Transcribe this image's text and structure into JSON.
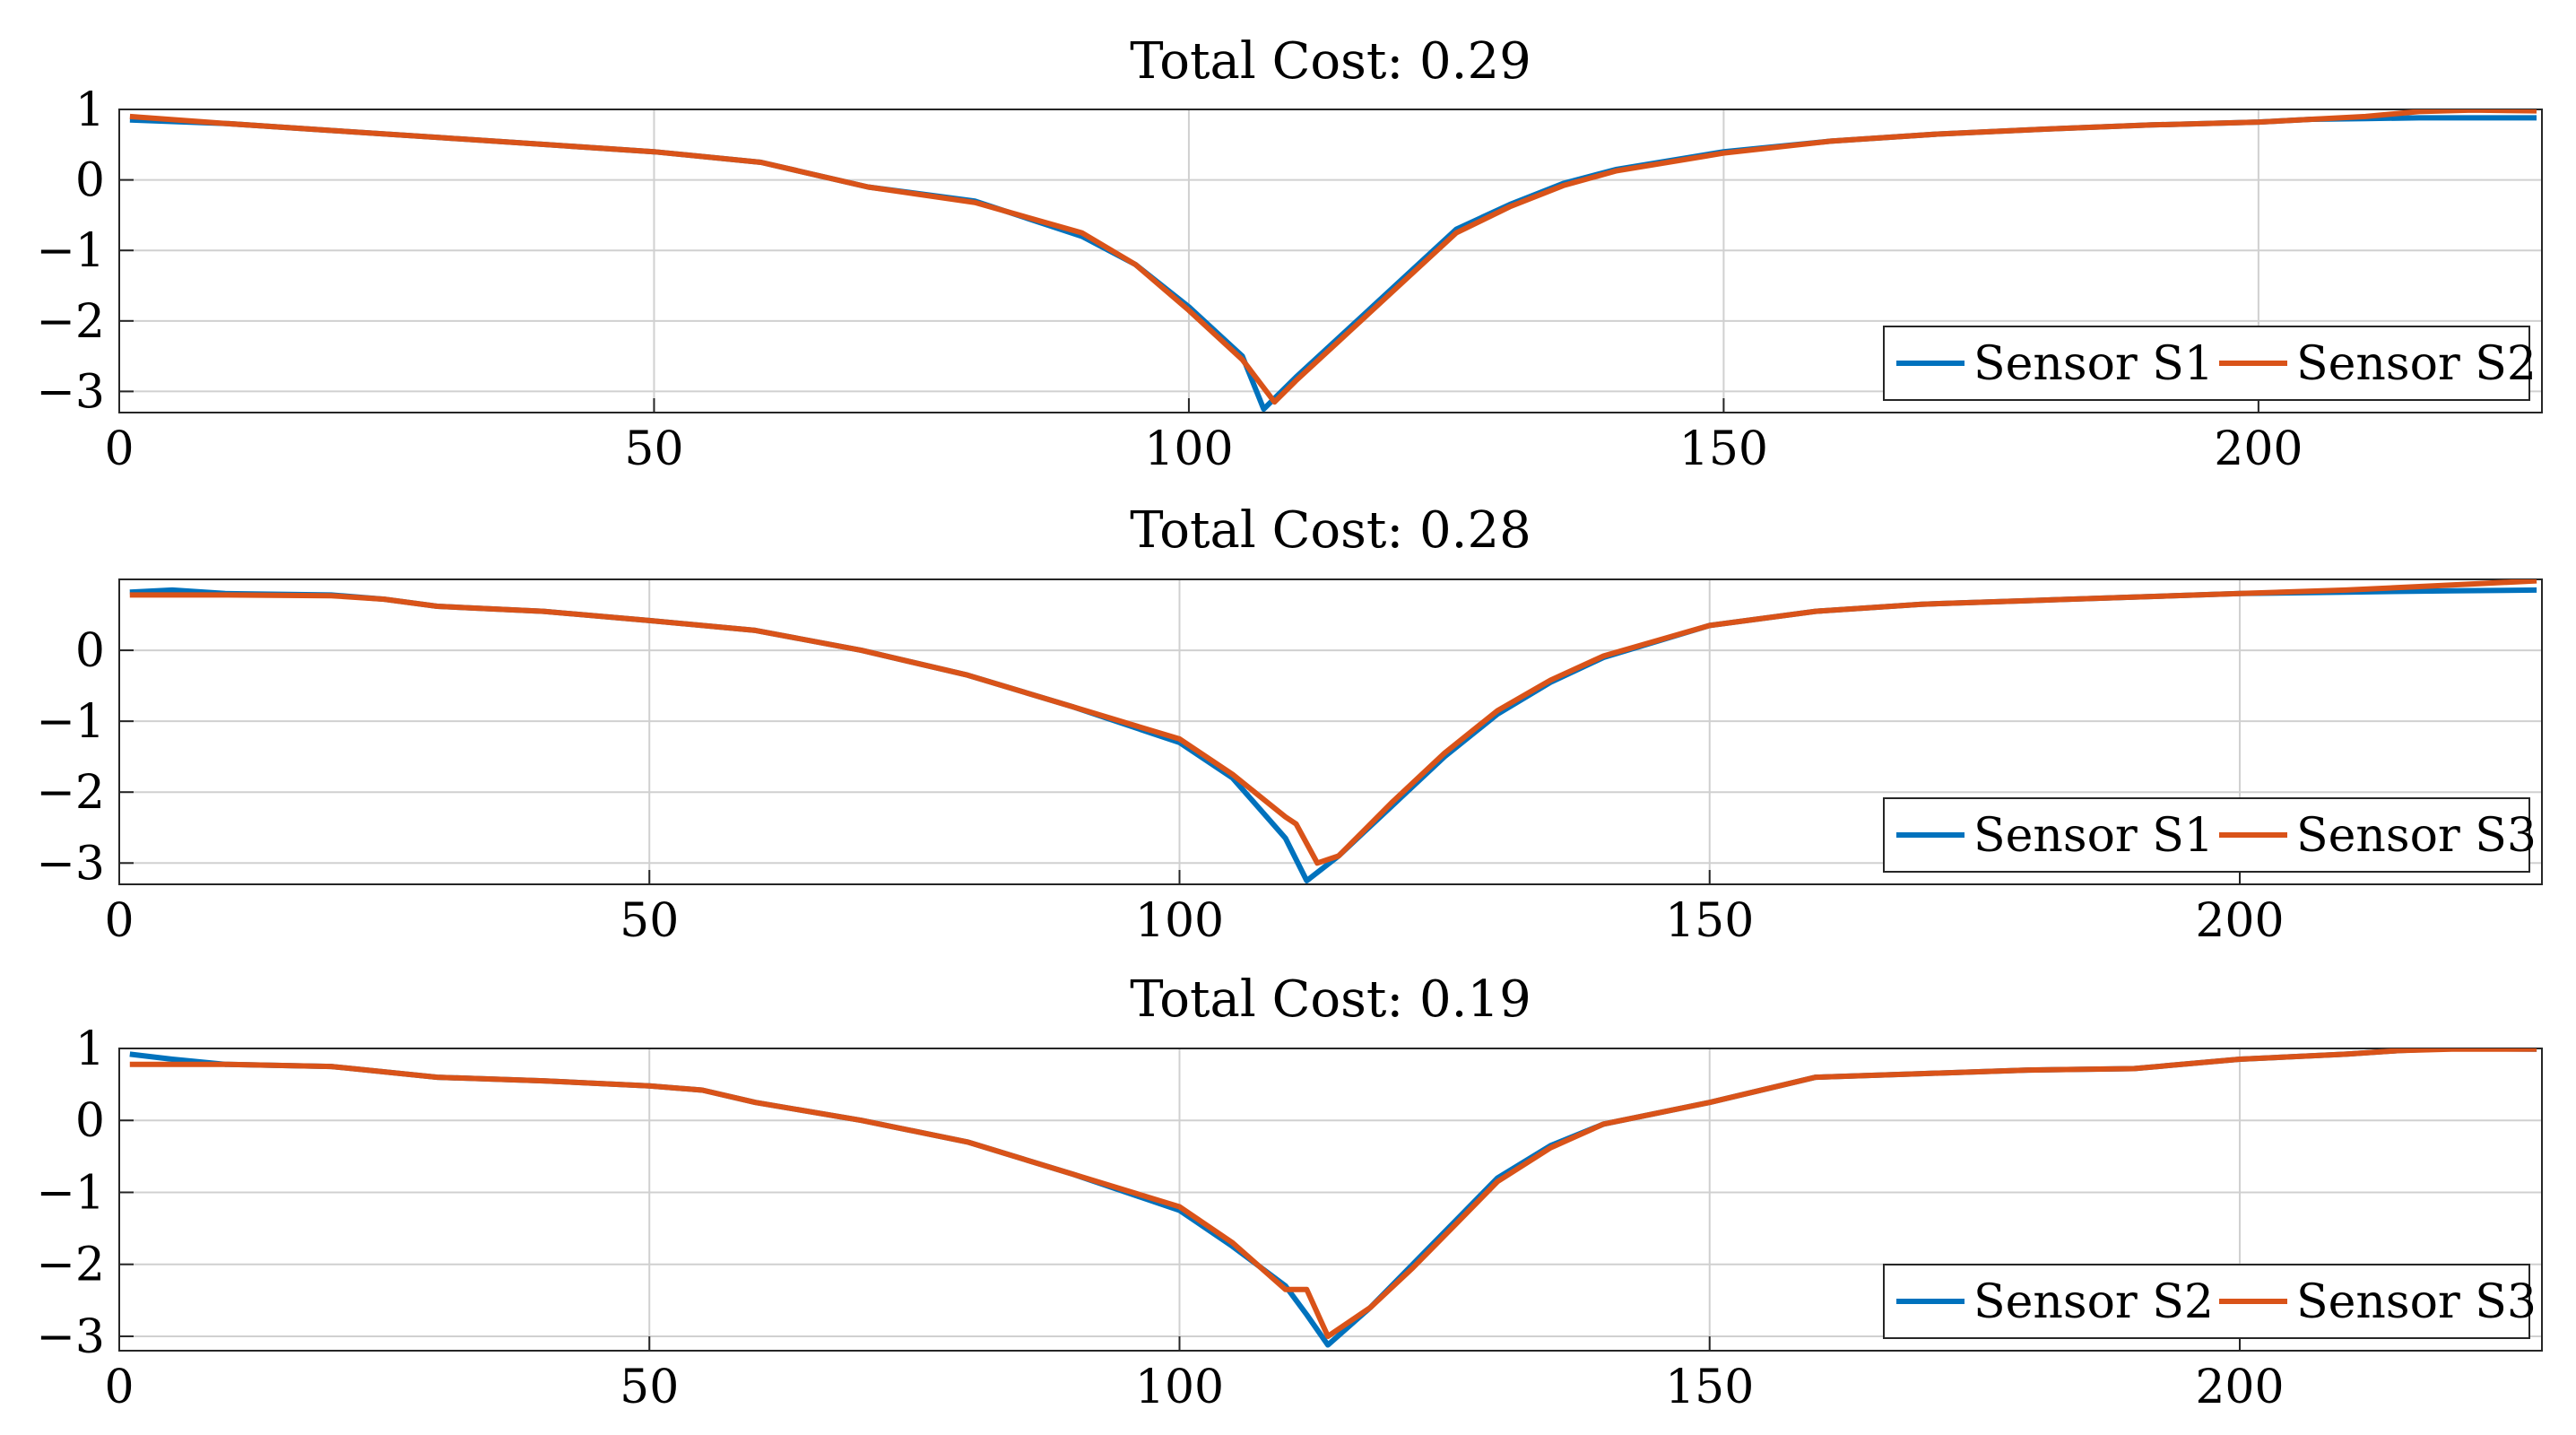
{
  "colors": {
    "series_a": "#0072BD",
    "series_b": "#D95319",
    "axes": "#262626",
    "grid": "#d0d0d0",
    "legend_border": "#262626"
  },
  "chart_data": [
    {
      "type": "line",
      "title": "Total Cost: 0.29",
      "xlim": [
        0,
        226.5
      ],
      "ylim": [
        -3.3,
        1.0
      ],
      "xticks": [
        0,
        50,
        100,
        150,
        200
      ],
      "xtick_labels": [
        "0",
        "50",
        "100",
        "150",
        "200"
      ],
      "yticks": [
        -3,
        -2,
        -1,
        0,
        1
      ],
      "ytick_labels": [
        "−3",
        "−2",
        "−1",
        "0",
        "1"
      ],
      "grid": true,
      "legend_position": "bottom-right",
      "series": [
        {
          "name": "Sensor S1",
          "color": "#0072BD",
          "x": [
            1,
            10,
            20,
            30,
            40,
            50,
            60,
            70,
            80,
            90,
            95,
            100,
            105,
            107,
            110,
            115,
            120,
            125,
            130,
            135,
            140,
            150,
            160,
            170,
            180,
            190,
            200,
            205,
            210,
            215,
            220,
            226
          ],
          "y": [
            0.85,
            0.8,
            0.7,
            0.6,
            0.5,
            0.4,
            0.25,
            -0.1,
            -0.3,
            -0.8,
            -1.2,
            -1.8,
            -2.5,
            -3.25,
            -2.8,
            -2.1,
            -1.4,
            -0.7,
            -0.35,
            -0.05,
            0.15,
            0.4,
            0.55,
            0.65,
            0.72,
            0.78,
            0.82,
            0.86,
            0.87,
            0.88,
            0.88,
            0.88
          ]
        },
        {
          "name": "Sensor S2",
          "color": "#D95319",
          "x": [
            1,
            10,
            20,
            30,
            40,
            50,
            60,
            70,
            80,
            90,
            95,
            100,
            105,
            108,
            110,
            115,
            120,
            125,
            130,
            135,
            140,
            150,
            160,
            170,
            180,
            190,
            200,
            205,
            210,
            215,
            220,
            226
          ],
          "y": [
            0.9,
            0.8,
            0.7,
            0.6,
            0.5,
            0.4,
            0.25,
            -0.1,
            -0.32,
            -0.75,
            -1.2,
            -1.85,
            -2.55,
            -3.15,
            -2.85,
            -2.15,
            -1.45,
            -0.75,
            -0.38,
            -0.08,
            0.13,
            0.38,
            0.55,
            0.65,
            0.72,
            0.78,
            0.82,
            0.86,
            0.9,
            0.97,
            0.99,
            0.98
          ]
        }
      ]
    },
    {
      "type": "line",
      "title": "Total Cost: 0.28",
      "xlim": [
        0,
        228.5
      ],
      "ylim": [
        -3.3,
        1.0
      ],
      "xticks": [
        0,
        50,
        100,
        150,
        200
      ],
      "xtick_labels": [
        "0",
        "50",
        "100",
        "150",
        "200"
      ],
      "yticks": [
        -3,
        -2,
        -1,
        0
      ],
      "ytick_labels": [
        "−3",
        "−2",
        "−1",
        "0"
      ],
      "grid": true,
      "legend_position": "bottom-right",
      "series": [
        {
          "name": "Sensor S1",
          "color": "#0072BD",
          "x": [
            1,
            5,
            10,
            20,
            25,
            30,
            40,
            50,
            60,
            70,
            80,
            90,
            100,
            105,
            110,
            112,
            115,
            120,
            125,
            130,
            135,
            140,
            150,
            160,
            170,
            180,
            190,
            200,
            210,
            220,
            228
          ],
          "y": [
            0.82,
            0.85,
            0.8,
            0.78,
            0.72,
            0.62,
            0.55,
            0.42,
            0.28,
            0.0,
            -0.35,
            -0.8,
            -1.3,
            -1.8,
            -2.65,
            -3.25,
            -2.9,
            -2.2,
            -1.5,
            -0.9,
            -0.45,
            -0.1,
            0.35,
            0.55,
            0.65,
            0.7,
            0.75,
            0.8,
            0.82,
            0.84,
            0.85
          ]
        },
        {
          "name": "Sensor S3",
          "color": "#D95319",
          "x": [
            1,
            5,
            10,
            20,
            25,
            30,
            40,
            50,
            60,
            70,
            80,
            90,
            100,
            105,
            110,
            111,
            113,
            115,
            120,
            125,
            130,
            135,
            140,
            150,
            160,
            170,
            180,
            190,
            200,
            210,
            220,
            228
          ],
          "y": [
            0.78,
            0.78,
            0.78,
            0.77,
            0.72,
            0.62,
            0.55,
            0.42,
            0.28,
            0.0,
            -0.35,
            -0.8,
            -1.25,
            -1.75,
            -2.35,
            -2.45,
            -3.0,
            -2.9,
            -2.15,
            -1.45,
            -0.85,
            -0.42,
            -0.08,
            0.35,
            0.55,
            0.65,
            0.7,
            0.75,
            0.8,
            0.85,
            0.92,
            0.98
          ]
        }
      ]
    },
    {
      "type": "line",
      "title": "Total Cost: 0.19",
      "xlim": [
        0,
        228.5
      ],
      "ylim": [
        -3.2,
        1.0
      ],
      "xticks": [
        0,
        50,
        100,
        150,
        200
      ],
      "xtick_labels": [
        "0",
        "50",
        "100",
        "150",
        "200"
      ],
      "yticks": [
        -3,
        -2,
        -1,
        0,
        1
      ],
      "ytick_labels": [
        "−3",
        "−2",
        "−1",
        "0",
        "1"
      ],
      "grid": true,
      "legend_position": "bottom-right",
      "series": [
        {
          "name": "Sensor S2",
          "color": "#0072BD",
          "x": [
            1,
            5,
            10,
            20,
            30,
            40,
            50,
            55,
            60,
            70,
            80,
            90,
            100,
            105,
            110,
            112,
            114,
            118,
            122,
            126,
            130,
            135,
            140,
            150,
            160,
            170,
            180,
            190,
            200,
            210,
            215,
            220,
            228
          ],
          "y": [
            0.92,
            0.85,
            0.78,
            0.75,
            0.6,
            0.55,
            0.48,
            0.42,
            0.25,
            0.0,
            -0.3,
            -0.75,
            -1.25,
            -1.75,
            -2.3,
            -2.7,
            -3.12,
            -2.6,
            -2.0,
            -1.4,
            -0.8,
            -0.35,
            -0.05,
            0.25,
            0.6,
            0.65,
            0.7,
            0.72,
            0.85,
            0.92,
            0.97,
            1.0,
            0.99
          ]
        },
        {
          "name": "Sensor S3",
          "color": "#D95319",
          "x": [
            1,
            5,
            10,
            20,
            30,
            40,
            50,
            55,
            60,
            70,
            80,
            90,
            100,
            105,
            110,
            112,
            114,
            118,
            122,
            126,
            130,
            135,
            140,
            150,
            160,
            170,
            180,
            190,
            200,
            210,
            215,
            220,
            228
          ],
          "y": [
            0.78,
            0.78,
            0.78,
            0.75,
            0.6,
            0.55,
            0.48,
            0.42,
            0.25,
            0.0,
            -0.3,
            -0.75,
            -1.2,
            -1.7,
            -2.35,
            -2.35,
            -3.0,
            -2.6,
            -2.05,
            -1.45,
            -0.85,
            -0.38,
            -0.05,
            0.25,
            0.6,
            0.65,
            0.7,
            0.72,
            0.85,
            0.92,
            0.97,
            0.99,
            0.99
          ]
        }
      ]
    }
  ]
}
